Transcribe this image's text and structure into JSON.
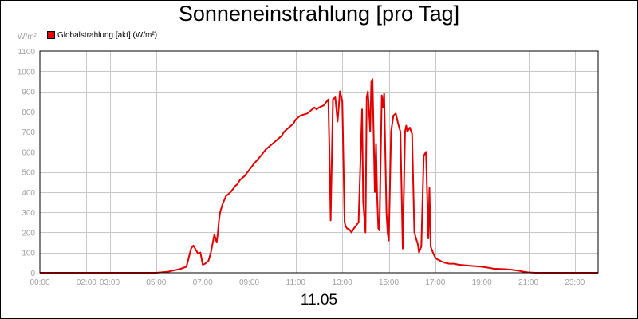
{
  "chart_data": {
    "type": "line",
    "title": "Sonneneinstrahlung [pro Tag]",
    "unit_label": "W/m²",
    "footer_label": "11.05",
    "xlabel": "",
    "ylabel": "",
    "ylim": [
      0,
      1100
    ],
    "xlim": [
      0,
      24
    ],
    "grid": true,
    "legend_position": "top-left",
    "y_ticks": [
      0,
      100,
      200,
      300,
      400,
      500,
      600,
      700,
      800,
      900,
      1000,
      1100
    ],
    "y_tick_labels": [
      "0",
      "100",
      "200",
      "300",
      "400",
      "500",
      "600",
      "700",
      "800",
      "900",
      "1000",
      "1100"
    ],
    "x_ticks": [
      0,
      2,
      3,
      5,
      7,
      9,
      11,
      13,
      15,
      17,
      19,
      21,
      23
    ],
    "x_tick_labels": [
      "00:00",
      "02:00",
      "03:00",
      "05:00",
      "07:00",
      "09:00",
      "11:00",
      "13:00",
      "15:00",
      "17:00",
      "19:00",
      "21:00",
      "23:00"
    ],
    "series": [
      {
        "name": "Globalstrahlung [akt] (W/m²)",
        "color": "#e00000",
        "x": [
          0,
          5,
          5.5,
          6,
          6.3,
          6.5,
          6.6,
          6.8,
          6.9,
          7.0,
          7.1,
          7.2,
          7.25,
          7.35,
          7.5,
          7.6,
          7.65,
          7.7,
          7.75,
          7.8,
          7.85,
          8.0,
          8.2,
          8.4,
          8.5,
          8.6,
          8.8,
          9.0,
          9.2,
          9.5,
          9.7,
          10.0,
          10.2,
          10.4,
          10.5,
          10.7,
          10.9,
          11.0,
          11.2,
          11.5,
          11.6,
          11.8,
          11.9,
          12.0,
          12.2,
          12.4,
          12.45,
          12.5,
          12.6,
          12.7,
          12.8,
          12.9,
          13.0,
          13.1,
          13.15,
          13.2,
          13.3,
          13.4,
          13.5,
          13.7,
          13.85,
          13.9,
          14.0,
          14.05,
          14.1,
          14.2,
          14.25,
          14.3,
          14.4,
          14.45,
          14.5,
          14.55,
          14.6,
          14.7,
          14.75,
          14.8,
          14.9,
          14.95,
          15.0,
          15.1,
          15.2,
          15.3,
          15.4,
          15.5,
          15.6,
          15.7,
          15.75,
          15.8,
          15.9,
          16.0,
          16.1,
          16.2,
          16.25,
          16.3,
          16.4,
          16.5,
          16.6,
          16.7,
          16.75,
          16.8,
          16.9,
          17.0,
          17.05,
          17.1,
          17.15,
          17.2,
          17.3,
          17.4,
          17.6,
          17.8,
          18.0,
          18.5,
          19.0,
          19.3,
          19.5,
          20.0,
          20.3,
          20.6,
          20.8,
          21.0,
          21.3,
          22.0,
          24.0
        ],
        "values": [
          0,
          0,
          5,
          18,
          30,
          120,
          135,
          95,
          100,
          40,
          45,
          55,
          60,
          100,
          190,
          150,
          195,
          260,
          300,
          320,
          340,
          380,
          400,
          430,
          440,
          460,
          480,
          510,
          540,
          580,
          610,
          640,
          660,
          680,
          700,
          720,
          740,
          760,
          780,
          790,
          800,
          820,
          810,
          820,
          830,
          860,
          600,
          260,
          860,
          870,
          750,
          900,
          850,
          250,
          230,
          220,
          215,
          200,
          220,
          250,
          810,
          350,
          200,
          870,
          900,
          700,
          950,
          960,
          400,
          640,
          380,
          220,
          210,
          880,
          820,
          890,
          300,
          200,
          160,
          700,
          780,
          790,
          740,
          700,
          120,
          700,
          730,
          700,
          720,
          690,
          200,
          160,
          140,
          100,
          130,
          580,
          600,
          170,
          420,
          130,
          100,
          75,
          70,
          65,
          65,
          60,
          55,
          50,
          45,
          45,
          40,
          35,
          30,
          25,
          20,
          18,
          15,
          10,
          5,
          2,
          0,
          0,
          0
        ]
      }
    ]
  }
}
